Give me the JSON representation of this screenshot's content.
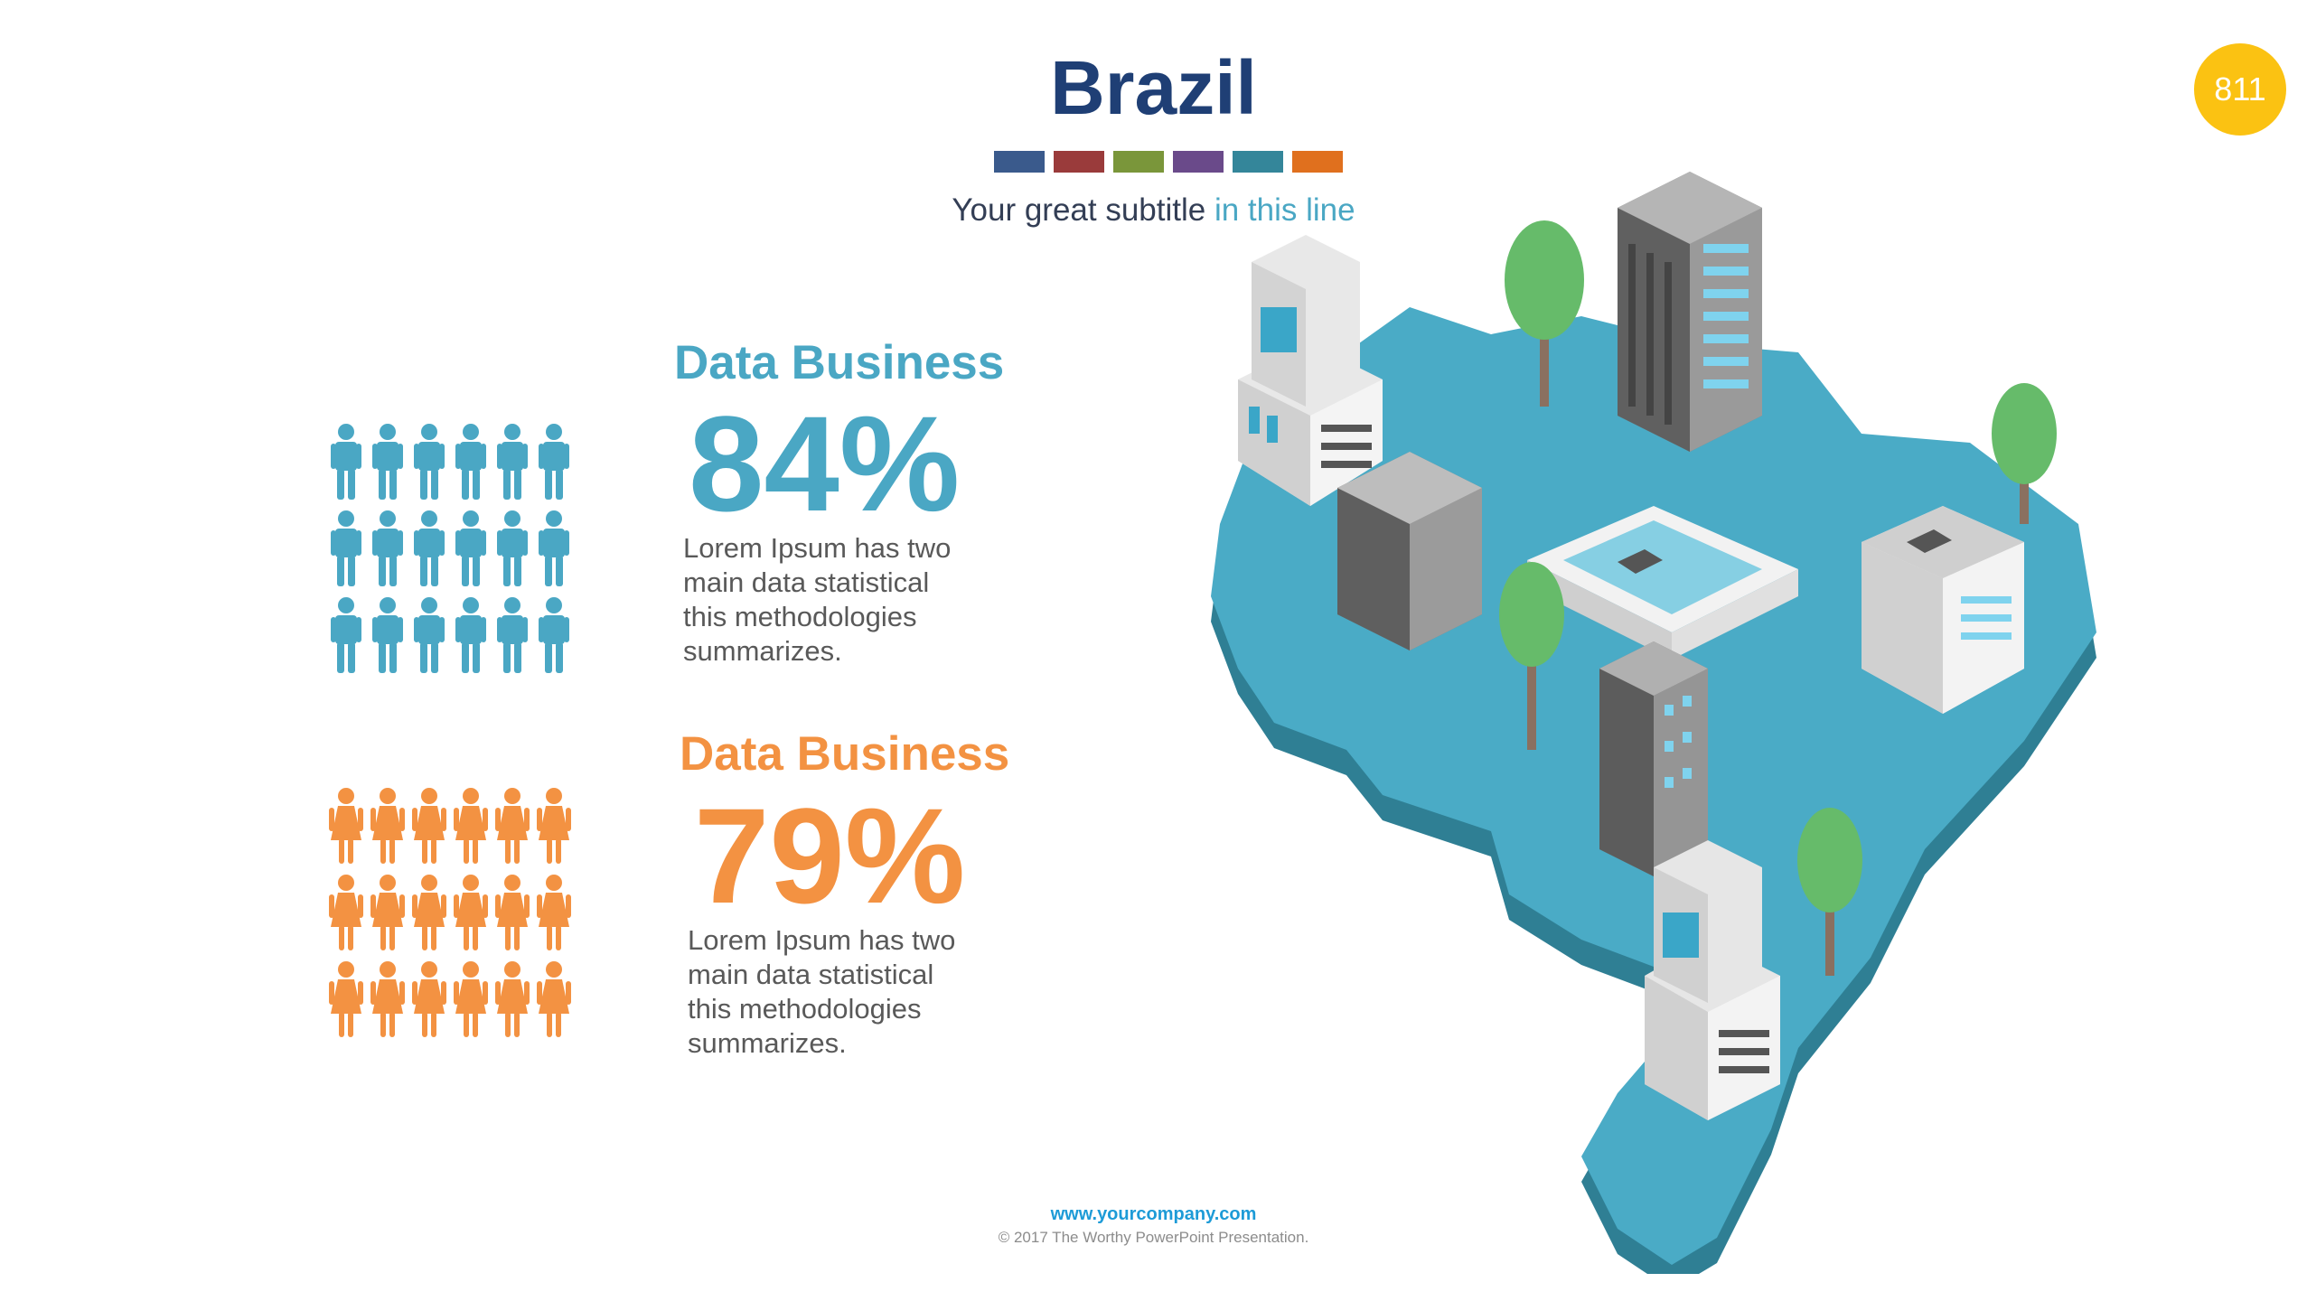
{
  "slide": {
    "title": "Brazil",
    "subtitle_main": "Your great subtitle",
    "subtitle_highlight": "in this line",
    "page_number": "811",
    "color_bars": [
      "#3a5a8c",
      "#9a3b3b",
      "#7a963a",
      "#6a4a8a",
      "#34869a",
      "#e0701e"
    ]
  },
  "stats": [
    {
      "title": "Data Business",
      "percent": "84%",
      "description": "Lorem Ipsum has two main data statistical this methodologies summarizes.",
      "color": "#4aa7c4",
      "icon": "man-icon",
      "icon_count": 18
    },
    {
      "title": "Data Business",
      "percent": "79%",
      "description": "Lorem Ipsum has two main data statistical this methodologies summarizes.",
      "color": "#f39242",
      "icon": "woman-icon",
      "icon_count": 18
    }
  ],
  "map": {
    "region": "brazil-map",
    "map_color": "#4aabc6",
    "map_side_color": "#2f7f94",
    "tree_color": "#66bb6a"
  },
  "footer": {
    "url": "www.yourcompany.com",
    "copyright": "© 2017 The Worthy PowerPoint Presentation."
  }
}
